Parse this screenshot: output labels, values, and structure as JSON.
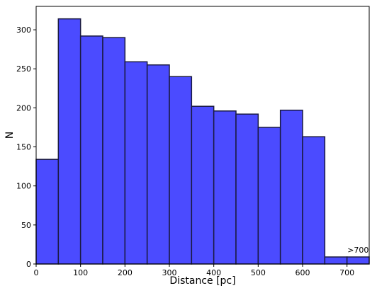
{
  "chart_data": {
    "type": "histogram",
    "bins": [
      0,
      50,
      100,
      150,
      200,
      250,
      300,
      350,
      400,
      450,
      500,
      550,
      600,
      650,
      700,
      750
    ],
    "values": [
      134,
      314,
      292,
      290,
      259,
      255,
      240,
      202,
      196,
      192,
      175,
      197,
      163,
      9,
      9
    ],
    "color": "#4b4bff",
    "edgecolor": "#1a1a40",
    "xlabel": "Distance [pc]",
    "ylabel": "N",
    "annotation": ">700",
    "xlim": [
      0,
      750
    ],
    "xticks": [
      0,
      100,
      200,
      300,
      400,
      500,
      600,
      700
    ],
    "ylim": [
      0,
      330
    ],
    "yticks": [
      0,
      50,
      100,
      150,
      200,
      250,
      300
    ]
  }
}
